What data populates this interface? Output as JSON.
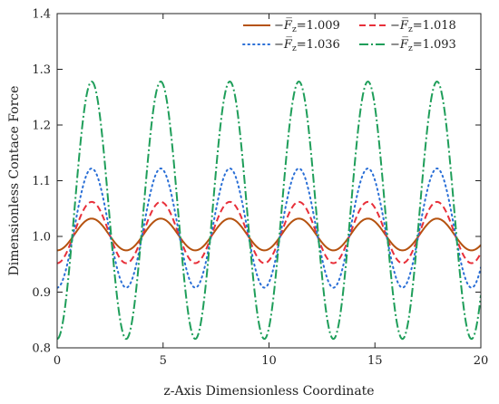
{
  "chart_data": {
    "type": "line",
    "title": "",
    "xlabel": "z-Axis Dimensionless Coordinate",
    "ylabel": "Dimensionless Contace Force",
    "xlim": [
      0,
      20
    ],
    "ylim": [
      0.8,
      1.4
    ],
    "xticks": [
      "0",
      "5",
      "10",
      "15",
      "20"
    ],
    "yticks": [
      "0.8",
      "0.9",
      "1.0",
      "1.1",
      "1.2",
      "1.3",
      "1.4"
    ],
    "grid": false,
    "legend_position": "top-right",
    "wave": {
      "period": 3.26,
      "peak_x": 1.63
    },
    "series": [
      {
        "name": "-F̅z=1.009",
        "legend_prefix": "−",
        "legend_symbol": "F̅",
        "legend_sub": "z",
        "legend_value": "=1.009",
        "min": 0.975,
        "max": 1.032,
        "color": "#b5520f",
        "dash": ""
      },
      {
        "name": "-F̅z=1.018",
        "legend_prefix": "−",
        "legend_symbol": "F̅",
        "legend_sub": "z",
        "legend_value": "=1.018",
        "min": 0.952,
        "max": 1.062,
        "color": "#e8303a",
        "dash": "7,4"
      },
      {
        "name": "-F̅z=1.036",
        "legend_prefix": "−",
        "legend_symbol": "F̅",
        "legend_sub": "z",
        "legend_value": "=1.036",
        "min": 0.908,
        "max": 1.122,
        "color": "#2a6fd6",
        "dash": "1.5,4"
      },
      {
        "name": "-F̅z=1.093",
        "legend_prefix": "−",
        "legend_symbol": "F̅",
        "legend_sub": "z",
        "legend_value": "=1.093",
        "min": 0.816,
        "max": 1.278,
        "color": "#1f9e5a",
        "dash": "10,3,2,3"
      }
    ]
  }
}
